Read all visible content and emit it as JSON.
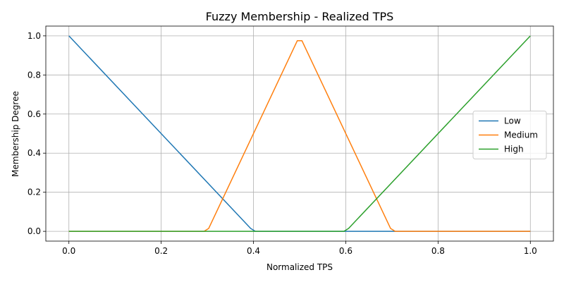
{
  "chart_data": {
    "type": "line",
    "title": "Fuzzy Membership - Realized TPS",
    "xlabel": "Normalized TPS",
    "ylabel": "Membership Degree",
    "xlim": [
      -0.05,
      1.05
    ],
    "ylim": [
      -0.05,
      1.05
    ],
    "x_ticks": [
      0.0,
      0.2,
      0.4,
      0.6,
      0.8,
      1.0
    ],
    "y_ticks": [
      0.0,
      0.2,
      0.4,
      0.6,
      0.8,
      1.0
    ],
    "x_tick_labels": [
      "0.0",
      "0.2",
      "0.4",
      "0.6",
      "0.8",
      "1.0"
    ],
    "y_tick_labels": [
      "0.0",
      "0.2",
      "0.4",
      "0.6",
      "0.8",
      "1.0"
    ],
    "grid": true,
    "legend_position": "center-right",
    "series": [
      {
        "name": "Low",
        "color": "#1f77b4",
        "x": [
          0.0,
          0.3939,
          0.404,
          1.0
        ],
        "y": [
          1.0,
          0.015,
          0.0,
          0.0
        ]
      },
      {
        "name": "Medium",
        "color": "#ff7f0e",
        "x": [
          0.0,
          0.2929,
          0.303,
          0.4949,
          0.5051,
          0.697,
          0.7071,
          1.0
        ],
        "y": [
          0.0,
          0.0,
          0.015,
          0.975,
          0.975,
          0.015,
          0.0,
          0.0
        ]
      },
      {
        "name": "High",
        "color": "#2ca02c",
        "x": [
          0.0,
          0.596,
          0.6061,
          1.0
        ],
        "y": [
          0.0,
          0.0,
          0.015,
          1.0
        ]
      }
    ]
  }
}
